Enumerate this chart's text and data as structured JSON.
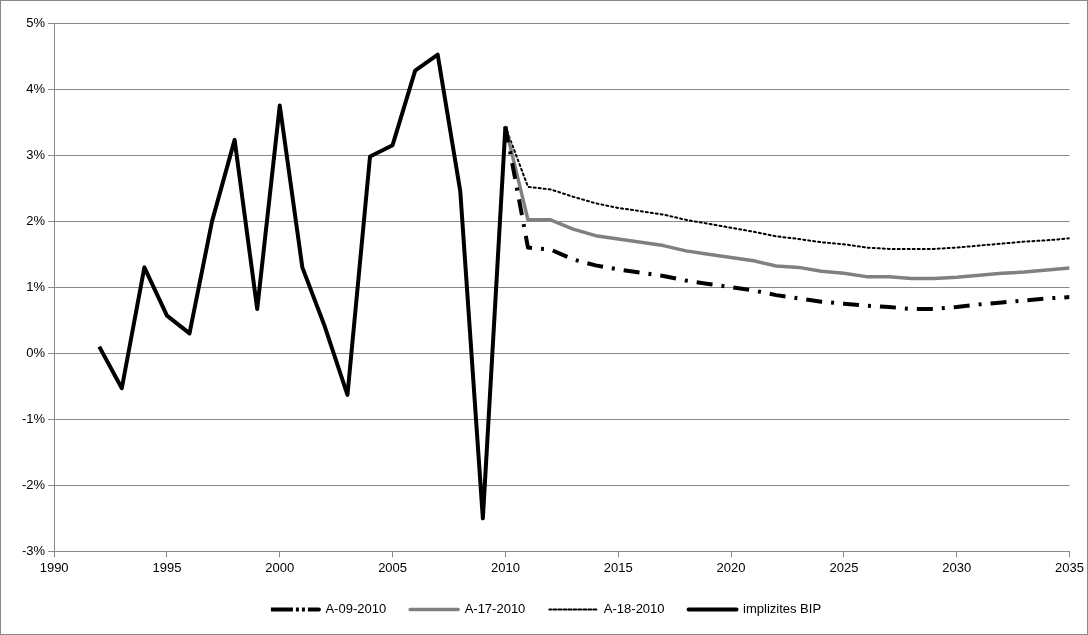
{
  "chart_data": {
    "type": "line",
    "xlim": [
      1990,
      2035
    ],
    "xticks": [
      1990,
      1995,
      2000,
      2005,
      2010,
      2015,
      2020,
      2025,
      2030,
      2035
    ],
    "ylim": [
      -3,
      5
    ],
    "yticks": [
      {
        "value": -3,
        "label": "-3%"
      },
      {
        "value": -2,
        "label": "-2%"
      },
      {
        "value": -1,
        "label": "-1%"
      },
      {
        "value": 0,
        "label": "0%"
      },
      {
        "value": 1,
        "label": "1%"
      },
      {
        "value": 2,
        "label": "2%"
      },
      {
        "value": 3,
        "label": "3%"
      },
      {
        "value": 4,
        "label": "4%"
      },
      {
        "value": 5,
        "label": "5%"
      }
    ],
    "grid": "y",
    "legend": "bottom",
    "marker": "none",
    "series": [
      {
        "name": "A-09-2010",
        "color": "#000000",
        "line_style": "dashed",
        "x": [
          2010,
          2011,
          2012,
          2013,
          2014,
          2015,
          2016,
          2017,
          2018,
          2019,
          2020,
          2021,
          2022,
          2023,
          2024,
          2025,
          2026,
          2027,
          2028,
          2029,
          2030,
          2031,
          2032,
          2033,
          2034,
          2035
        ],
        "values": [
          3.43,
          1.6,
          1.57,
          1.42,
          1.33,
          1.27,
          1.22,
          1.17,
          1.1,
          1.05,
          1.0,
          0.95,
          0.88,
          0.83,
          0.78,
          0.75,
          0.72,
          0.7,
          0.67,
          0.67,
          0.7,
          0.74,
          0.77,
          0.8,
          0.83,
          0.85
        ]
      },
      {
        "name": "A-17-2010",
        "color": "#808080",
        "line_style": "solid",
        "x": [
          2010,
          2011,
          2012,
          2013,
          2014,
          2015,
          2016,
          2017,
          2018,
          2019,
          2020,
          2021,
          2022,
          2023,
          2024,
          2025,
          2026,
          2027,
          2028,
          2029,
          2030,
          2031,
          2032,
          2033,
          2034,
          2035
        ],
        "values": [
          3.43,
          2.02,
          2.02,
          1.88,
          1.78,
          1.73,
          1.68,
          1.63,
          1.55,
          1.5,
          1.45,
          1.4,
          1.32,
          1.3,
          1.24,
          1.21,
          1.16,
          1.16,
          1.13,
          1.13,
          1.15,
          1.18,
          1.21,
          1.23,
          1.26,
          1.29
        ]
      },
      {
        "name": "A-18-2010",
        "color": "#000000",
        "line_style": "dotted",
        "x": [
          2010,
          2011,
          2012,
          2013,
          2014,
          2015,
          2016,
          2017,
          2018,
          2019,
          2020,
          2021,
          2022,
          2023,
          2024,
          2025,
          2026,
          2027,
          2028,
          2029,
          2030,
          2031,
          2032,
          2033,
          2034,
          2035
        ],
        "values": [
          3.43,
          2.52,
          2.48,
          2.37,
          2.27,
          2.2,
          2.15,
          2.1,
          2.02,
          1.96,
          1.9,
          1.84,
          1.77,
          1.73,
          1.68,
          1.65,
          1.6,
          1.58,
          1.58,
          1.58,
          1.6,
          1.63,
          1.66,
          1.69,
          1.71,
          1.74
        ]
      },
      {
        "name": "implizites BIP",
        "color": "#000000",
        "line_style": "solid",
        "x": [
          1992,
          1993,
          1994,
          1995,
          1996,
          1997,
          1998,
          1999,
          2000,
          2001,
          2002,
          2003,
          2004,
          2005,
          2006,
          2007,
          2008,
          2009,
          2010
        ],
        "values": [
          0.1,
          -0.53,
          1.3,
          0.57,
          0.3,
          2.0,
          3.23,
          0.67,
          3.75,
          1.3,
          0.4,
          -0.63,
          2.98,
          3.15,
          4.28,
          4.52,
          2.45,
          -2.5,
          3.43
        ]
      }
    ]
  }
}
